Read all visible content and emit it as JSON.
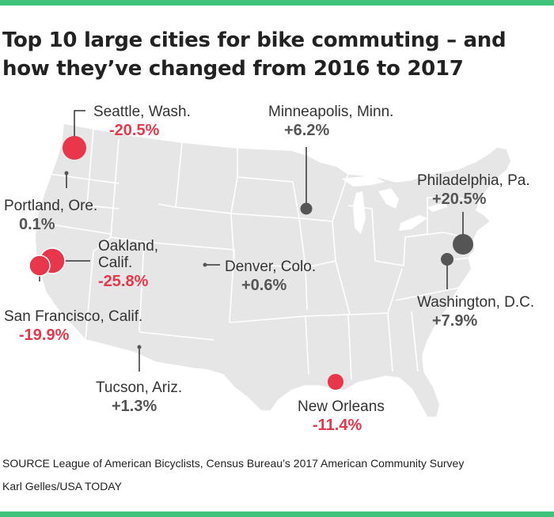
{
  "title": "Top 10 large cities for bike commuting – and how they’ve changed from 2016 to 2017",
  "colors": {
    "decrease": "#e8374a",
    "increase": "#555555",
    "accent_bar": "#3fc37b",
    "land": "#e6e6e6"
  },
  "cities": [
    {
      "name": "Seattle, Wash.",
      "change": "-20.5%",
      "direction": "down"
    },
    {
      "name": "Minneapolis, Minn.",
      "change": "+6.2%",
      "direction": "up"
    },
    {
      "name": "Philadelphia, Pa.",
      "change": "+20.5%",
      "direction": "up"
    },
    {
      "name": "Portland, Ore.",
      "change": "0.1%",
      "direction": "up"
    },
    {
      "name": "Oakland,",
      "name2": "Calif.",
      "change": "-25.8%",
      "direction": "down"
    },
    {
      "name": "Denver, Colo.",
      "change": "+0.6%",
      "direction": "up"
    },
    {
      "name": "Washington, D.C.",
      "change": "+7.9%",
      "direction": "up"
    },
    {
      "name": "San Francisco, Calif.",
      "change": "-19.9%",
      "direction": "down"
    },
    {
      "name": "Tucson, Ariz.",
      "change": "+1.3%",
      "direction": "up"
    },
    {
      "name": "New Orleans",
      "change": "-11.4%",
      "direction": "down"
    }
  ],
  "source": "SOURCE League of American Bicyclists, Census Bureau’s 2017 American Community Survey",
  "credit": "Karl Gelles/USA TODAY"
}
